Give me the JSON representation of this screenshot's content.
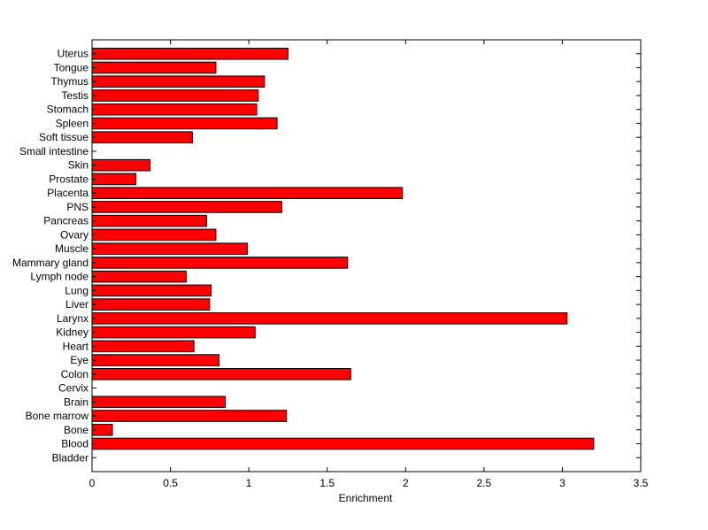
{
  "chart_data": {
    "type": "bar",
    "orientation": "horizontal",
    "title": "",
    "xlabel": "Enrichment",
    "ylabel": "",
    "xlim": [
      0,
      3.5
    ],
    "xticks": [
      0,
      0.5,
      1,
      1.5,
      2,
      2.5,
      3,
      3.5
    ],
    "xtick_labels": [
      "0",
      "0.5",
      "1",
      "1.5",
      "2",
      "2.5",
      "3",
      "3.5"
    ],
    "grid": false,
    "legend": "none",
    "bar_color": "#ff0000",
    "bar_edge_color": "#000000",
    "categories": [
      "Bladder",
      "Blood",
      "Bone",
      "Bone marrow",
      "Brain",
      "Cervix",
      "Colon",
      "Eye",
      "Heart",
      "Kidney",
      "Larynx",
      "Liver",
      "Lung",
      "Lymph node",
      "Mammary gland",
      "Muscle",
      "Ovary",
      "Pancreas",
      "PNS",
      "Placenta",
      "Prostate",
      "Skin",
      "Small intestine",
      "Soft tissue",
      "Spleen",
      "Stomach",
      "Testis",
      "Thymus",
      "Tongue",
      "Uterus"
    ],
    "values": [
      0,
      3.2,
      0.13,
      1.24,
      0.85,
      0,
      1.65,
      0.81,
      0.65,
      1.04,
      3.03,
      0.75,
      0.76,
      0.6,
      1.63,
      0.99,
      0.79,
      0.73,
      1.21,
      1.98,
      0.28,
      0.37,
      0,
      0.64,
      1.18,
      1.05,
      1.06,
      1.1,
      0.79,
      1.25
    ]
  }
}
